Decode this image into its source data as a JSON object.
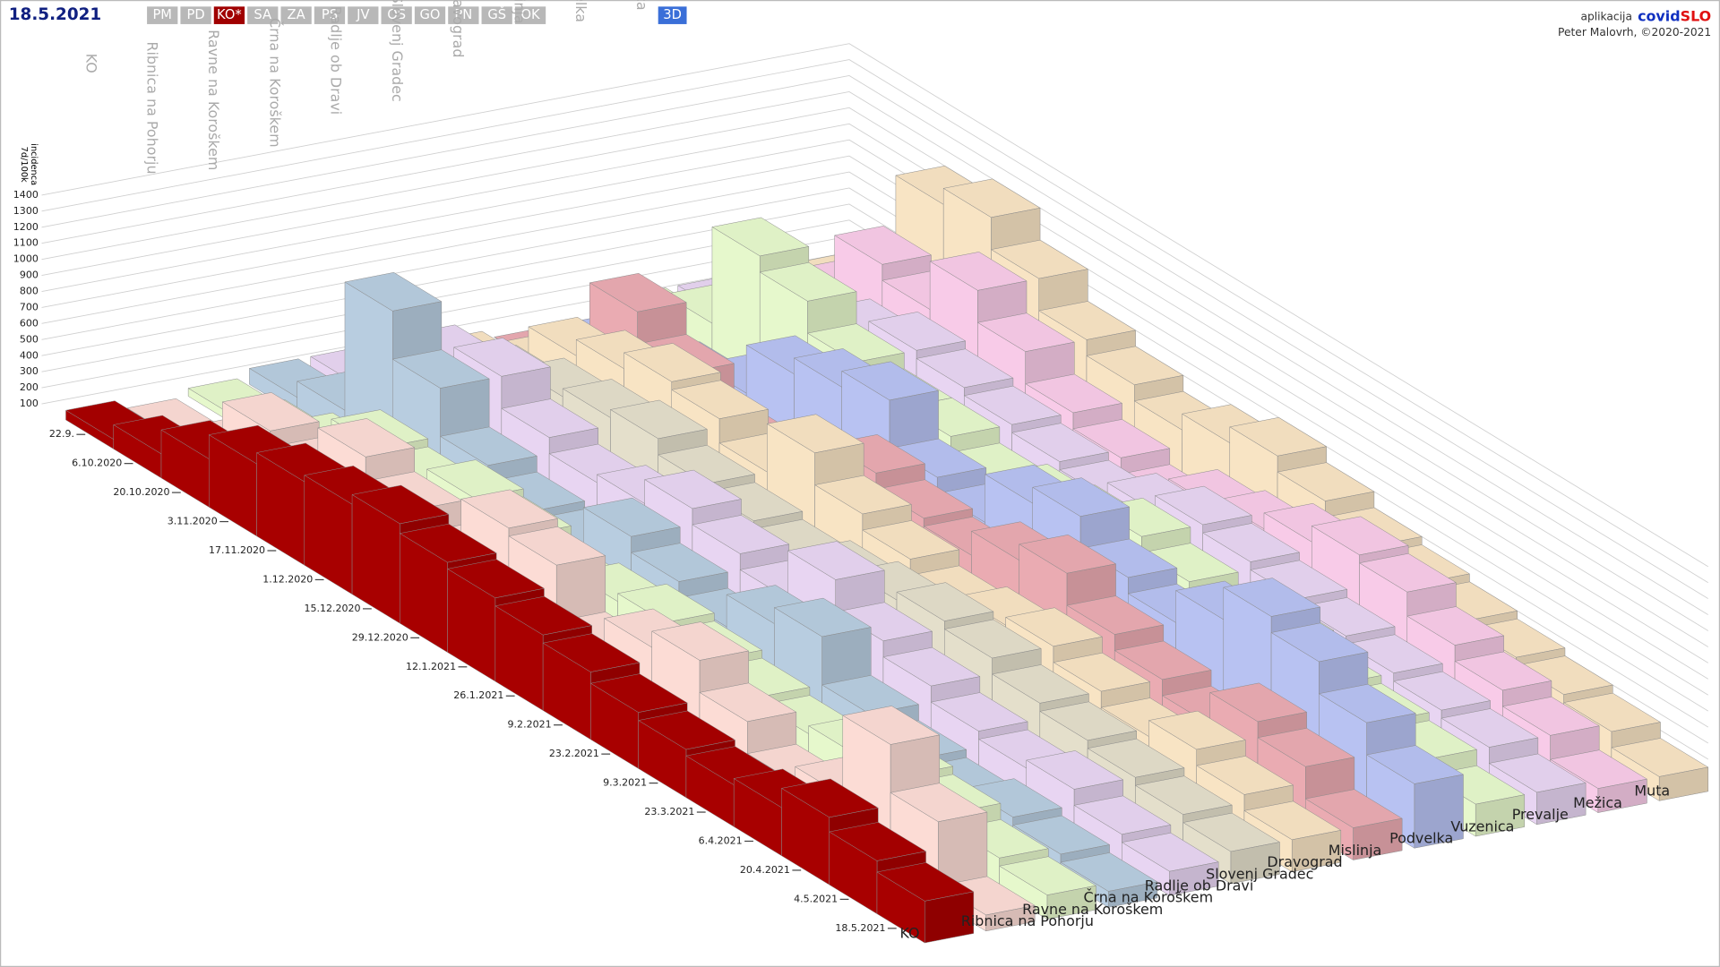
{
  "header": {
    "date": "18.5.2021",
    "buttons": [
      "PM",
      "PD",
      "KO*",
      "SA",
      "ZA",
      "PS",
      "JV",
      "OS",
      "GO",
      "PN",
      "GŠ",
      "OK"
    ],
    "active_index": 2,
    "mode_button": "3D",
    "credit_prefix": "aplikacija",
    "brand_1": "covid",
    "brand_2": "SLO",
    "author": "Peter Malovrh, ©2020-2021"
  },
  "chart_data": {
    "type": "bar3d",
    "ylabel_lines": [
      "7d/100k",
      "incidenca"
    ],
    "ylim": [
      0,
      1400
    ],
    "yticks": [
      100,
      200,
      300,
      400,
      500,
      600,
      700,
      800,
      900,
      1000,
      1100,
      1200,
      1300,
      1400
    ],
    "grid": true,
    "categories": [
      "22.9.",
      "6.10.2020",
      "20.10.2020",
      "3.11.2020",
      "17.11.2020",
      "1.12.2020",
      "15.12.2020",
      "29.12.2020",
      "12.1.2021",
      "26.1.2021",
      "9.2.2021",
      "23.2.2021",
      "9.3.2021",
      "23.3.2021",
      "6.4.2021",
      "20.4.2021",
      "4.5.2021",
      "18.5.2021"
    ],
    "series": [
      {
        "name": "KO",
        "color": "#a80000",
        "values": [
          60,
          150,
          300,
          450,
          520,
          560,
          620,
          560,
          520,
          470,
          420,
          350,
          300,
          260,
          300,
          420,
          330,
          260
        ]
      },
      {
        "name": "Ribnica na Pohorju",
        "color": "#fcdcd5",
        "values": [
          0,
          50,
          400,
          300,
          600,
          450,
          300,
          700,
          650,
          300,
          500,
          600,
          400,
          200,
          300,
          800,
          500,
          100
        ]
      },
      {
        "name": "Ravne na Koroškem",
        "color": "#e6f8cc",
        "values": [
          50,
          100,
          200,
          400,
          350,
          450,
          400,
          300,
          350,
          400,
          350,
          300,
          250,
          300,
          350,
          300,
          200,
          150
        ]
      },
      {
        "name": "Črna na Koroškem",
        "color": "#b8cde0",
        "values": [
          100,
          200,
          1000,
          700,
          400,
          300,
          250,
          500,
          400,
          300,
          500,
          600,
          300,
          200,
          150,
          200,
          150,
          100
        ]
      },
      {
        "name": "Radlje ob Dravi",
        "color": "#e8d5f2",
        "values": [
          100,
          200,
          600,
          700,
          500,
          400,
          450,
          600,
          500,
          400,
          700,
          500,
          400,
          300,
          250,
          300,
          200,
          150
        ]
      },
      {
        "name": "Slovenj Gradec",
        "color": "#e4dfcb",
        "values": [
          80,
          150,
          400,
          500,
          550,
          600,
          500,
          450,
          400,
          450,
          500,
          550,
          500,
          400,
          350,
          300,
          250,
          200
        ]
      },
      {
        "name": "Dravograd",
        "color": "#f8e4c4",
        "values": [
          50,
          200,
          500,
          600,
          700,
          650,
          500,
          800,
          600,
          500,
          400,
          450,
          500,
          400,
          300,
          400,
          300,
          200
        ]
      },
      {
        "name": "Mislinja",
        "color": "#eaabb2",
        "values": [
          0,
          100,
          700,
          500,
          300,
          200,
          400,
          600,
          500,
          450,
          600,
          700,
          500,
          400,
          300,
          500,
          400,
          200
        ]
      },
      {
        "name": "Podvelka",
        "color": "#b8c2f2",
        "values": [
          0,
          50,
          200,
          300,
          600,
          700,
          800,
          500,
          400,
          700,
          800,
          600,
          500,
          700,
          900,
          800,
          600,
          400
        ]
      },
      {
        "name": "Vuzenica",
        "color": "#e6f8cc",
        "values": [
          100,
          300,
          900,
          800,
          600,
          500,
          500,
          400,
          450,
          500,
          600,
          500,
          400,
          500,
          400,
          350,
          300,
          200
        ]
      },
      {
        "name": "Prevalje",
        "color": "#e8d5f2",
        "values": [
          100,
          200,
          400,
          500,
          600,
          550,
          500,
          450,
          400,
          500,
          600,
          550,
          500,
          450,
          400,
          350,
          300,
          200
        ]
      },
      {
        "name": "Mežica",
        "color": "#f8cbe8",
        "values": [
          50,
          300,
          700,
          600,
          900,
          700,
          500,
          400,
          300,
          450,
          500,
          600,
          700,
          650,
          500,
          400,
          300,
          150
        ]
      },
      {
        "name": "Muta",
        "color": "#f8e4c4",
        "values": [
          100,
          300,
          1000,
          1100,
          900,
          700,
          600,
          500,
          600,
          700,
          600,
          500,
          450,
          400,
          350,
          300,
          250,
          150
        ]
      }
    ]
  }
}
